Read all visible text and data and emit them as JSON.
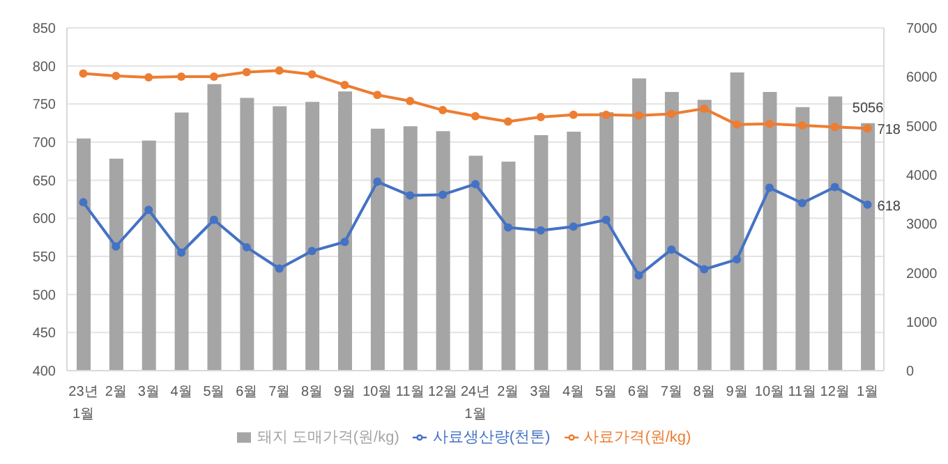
{
  "chart_data": {
    "type": "bar",
    "categories": [
      "23년\n1월",
      "2월",
      "3월",
      "4월",
      "5월",
      "6월",
      "7월",
      "8월",
      "9월",
      "10월",
      "11월",
      "12월",
      "24년\n1월",
      "2월",
      "3월",
      "4월",
      "5월",
      "6월",
      "7월",
      "8월",
      "9월",
      "10월",
      "11월",
      "12월",
      "1월"
    ],
    "series": [
      {
        "name": "돼지 도매가격(원/kg)",
        "axis": "y2",
        "color": "#a5a5a5",
        "values": [
          4740,
          4330,
          4700,
          5270,
          5850,
          5570,
          5400,
          5490,
          5700,
          4940,
          4990,
          4890,
          4390,
          4270,
          4810,
          4880,
          5280,
          5970,
          5690,
          5530,
          6090,
          5690,
          5380,
          5600,
          5056
        ],
        "value_labels": [
          null,
          null,
          null,
          null,
          null,
          null,
          null,
          null,
          null,
          null,
          null,
          null,
          null,
          null,
          null,
          null,
          null,
          null,
          null,
          null,
          null,
          null,
          null,
          null,
          "5056"
        ]
      },
      {
        "name": "사료생산량(천톤)",
        "type": "line",
        "color": "#4472c4",
        "values": [
          621,
          563,
          611,
          555,
          598,
          562,
          534,
          557,
          569,
          648,
          630,
          631,
          645,
          588,
          584,
          589,
          598,
          525,
          559,
          533,
          546,
          640,
          620,
          641,
          618
        ],
        "value_labels": [
          null,
          null,
          null,
          null,
          null,
          null,
          null,
          null,
          null,
          null,
          null,
          null,
          null,
          null,
          null,
          null,
          null,
          null,
          null,
          null,
          null,
          null,
          null,
          null,
          "618"
        ]
      },
      {
        "name": "사료가격(원/kg)",
        "type": "line",
        "color": "#ed7d31",
        "values": [
          790,
          787,
          785,
          786,
          786,
          792,
          794,
          789,
          775,
          762,
          754,
          742,
          734,
          727,
          733,
          736,
          736,
          735,
          737,
          744,
          723,
          724,
          722,
          720,
          718
        ],
        "value_labels": [
          null,
          null,
          null,
          null,
          null,
          null,
          null,
          null,
          null,
          null,
          null,
          null,
          null,
          null,
          null,
          null,
          null,
          null,
          null,
          null,
          null,
          null,
          null,
          null,
          "718"
        ]
      }
    ],
    "ylim": [
      400,
      850
    ],
    "yticks": [
      400,
      450,
      500,
      550,
      600,
      650,
      700,
      750,
      800,
      850
    ],
    "y2lim": [
      0,
      7000
    ],
    "y2ticks": [
      0,
      1000,
      2000,
      3000,
      4000,
      5000,
      6000,
      7000
    ],
    "grid": "y",
    "legend": "bottom",
    "marker": "circle",
    "line_style": "solid"
  }
}
